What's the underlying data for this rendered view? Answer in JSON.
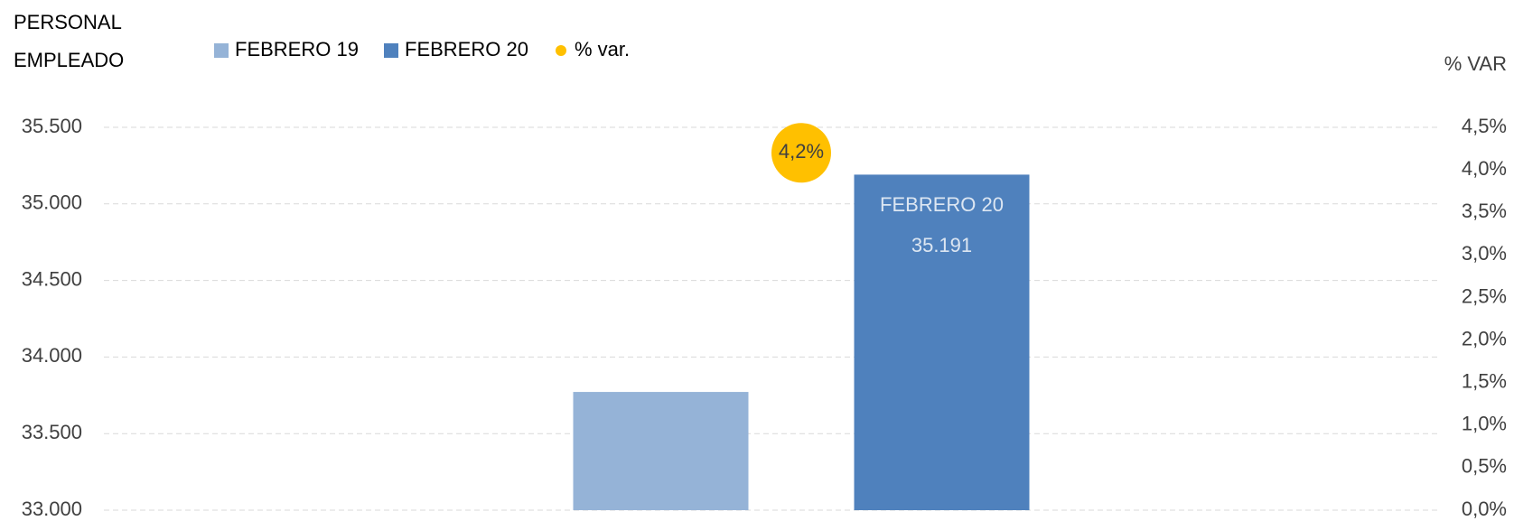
{
  "chart_data": {
    "type": "bar",
    "title": "PERSONAL EMPLEADO",
    "y2_label": "% VAR",
    "categories": [
      null
    ],
    "series": [
      {
        "name": "FEBRERO 19",
        "color": "#95b3d7",
        "values": [
          33772
        ]
      },
      {
        "name": "FEBRERO 20",
        "color": "#4f81bd",
        "values": [
          35191
        ],
        "value_labels": [
          "35.191"
        ]
      },
      {
        "name": "% var.",
        "color": "#ffc000",
        "axis": "y2",
        "type": "point",
        "values": [
          4.2
        ],
        "value_labels": [
          "4,2%"
        ]
      }
    ],
    "ylim": [
      33000,
      35500
    ],
    "yticks": [
      {
        "value": 33000,
        "label": "33.000"
      },
      {
        "value": 33500,
        "label": "33.500"
      },
      {
        "value": 34000,
        "label": "34.000"
      },
      {
        "value": 34500,
        "label": "34.500"
      },
      {
        "value": 35000,
        "label": "35.000"
      },
      {
        "value": 35500,
        "label": "35.500"
      }
    ],
    "y2lim": [
      0,
      4.5
    ],
    "y2ticks": [
      {
        "value": 0,
        "label": "0,0%"
      },
      {
        "value": 0.5,
        "label": "0,5%"
      },
      {
        "value": 1,
        "label": "1,0%"
      },
      {
        "value": 1.5,
        "label": "1,5%"
      },
      {
        "value": 2,
        "label": "2,0%"
      },
      {
        "value": 2.5,
        "label": "2,5%"
      },
      {
        "value": 3,
        "label": "3,0%"
      },
      {
        "value": 3.5,
        "label": "3,5%"
      },
      {
        "value": 4,
        "label": "4,0%"
      },
      {
        "value": 4.5,
        "label": "4,5%"
      }
    ],
    "grid": true,
    "legend": "top"
  }
}
